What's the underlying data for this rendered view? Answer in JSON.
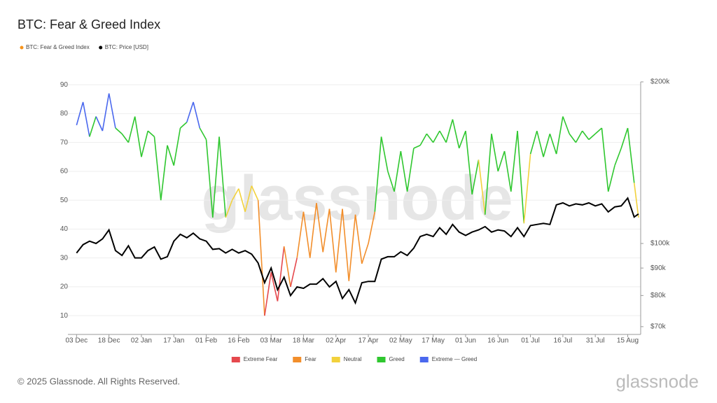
{
  "chart_data": {
    "type": "line",
    "title": "BTC: Fear & Greed Index",
    "watermark": "glassnode",
    "footer": "© 2025 Glassnode. All Rights Reserved.",
    "logo": "glassnode",
    "x": [
      0,
      3,
      6,
      9,
      12,
      15,
      18,
      21,
      24,
      27,
      30,
      33,
      36,
      39,
      42,
      45,
      48,
      51,
      54,
      57,
      60,
      63,
      66,
      69,
      72,
      75,
      78,
      81,
      84,
      87,
      90,
      93,
      96,
      99,
      102,
      105,
      108,
      111,
      114,
      117,
      120,
      123,
      126,
      129,
      132,
      135,
      138,
      141,
      144,
      147,
      150,
      153,
      156,
      159,
      162,
      165,
      168,
      171,
      174,
      177,
      180,
      183,
      186,
      189,
      192,
      195,
      198,
      201,
      204,
      207,
      210,
      213,
      216,
      219,
      222,
      225,
      228,
      231,
      234,
      237,
      240,
      243,
      246,
      249,
      252,
      255,
      258,
      260
    ],
    "xlim": [
      -4,
      261
    ],
    "xticks": [
      {
        "value": 0,
        "label": "03 Dec"
      },
      {
        "value": 15,
        "label": "18 Dec"
      },
      {
        "value": 30,
        "label": "02 Jan"
      },
      {
        "value": 45,
        "label": "17 Jan"
      },
      {
        "value": 60,
        "label": "01 Feb"
      },
      {
        "value": 75,
        "label": "16 Feb"
      },
      {
        "value": 90,
        "label": "03 Mar"
      },
      {
        "value": 105,
        "label": "18 Mar"
      },
      {
        "value": 120,
        "label": "02 Apr"
      },
      {
        "value": 135,
        "label": "17 Apr"
      },
      {
        "value": 150,
        "label": "02 May"
      },
      {
        "value": 165,
        "label": "17 May"
      },
      {
        "value": 180,
        "label": "01 Jun"
      },
      {
        "value": 195,
        "label": "16 Jun"
      },
      {
        "value": 210,
        "label": "01 Jul"
      },
      {
        "value": 225,
        "label": "16 Jul"
      },
      {
        "value": 240,
        "label": "31 Jul"
      },
      {
        "value": 255,
        "label": "15 Aug"
      }
    ],
    "ylim": [
      3.5,
      91
    ],
    "yticks": [
      10,
      20,
      30,
      40,
      50,
      60,
      70,
      80,
      90
    ],
    "y2lim": [
      67700,
      200000
    ],
    "y2log": true,
    "y2ticks": [
      {
        "value": 70000,
        "label": "$70k"
      },
      {
        "value": 80000,
        "label": "$80k"
      },
      {
        "value": 90000,
        "label": "$90k"
      },
      {
        "value": 100000,
        "label": "$100k"
      },
      {
        "value": 200000,
        "label": "$200k"
      }
    ],
    "grid": true,
    "series": [
      {
        "name": "BTC: Fear & Greed Index",
        "color": "#f7931a",
        "values": [
          76,
          84,
          72,
          79,
          74,
          87,
          75,
          73,
          70,
          79,
          65,
          74,
          72,
          50,
          69,
          62,
          75,
          77,
          84,
          75,
          71,
          44,
          72,
          44,
          50,
          54,
          46,
          55,
          50,
          10,
          25,
          15,
          34,
          20,
          30,
          46,
          30,
          49,
          32,
          47,
          25,
          47,
          22,
          45,
          28,
          35,
          46,
          72,
          60,
          53,
          67,
          53,
          68,
          69,
          73,
          70,
          74,
          70,
          78,
          68,
          74,
          52,
          64,
          45,
          73,
          60,
          67,
          53,
          74,
          42,
          66,
          74,
          65,
          73,
          66,
          79,
          73,
          70,
          74,
          71,
          73,
          75,
          53,
          62,
          68,
          75,
          56,
          44
        ]
      },
      {
        "name": "BTC: Price [USD]",
        "color": "#000000",
        "axis": "y2",
        "values": [
          96000,
          99500,
          101000,
          100000,
          102000,
          106000,
          97000,
          95000,
          99000,
          94000,
          94000,
          97000,
          98500,
          93500,
          94500,
          101000,
          104000,
          102500,
          104500,
          102000,
          101000,
          97500,
          97800,
          96000,
          97500,
          96000,
          97000,
          95500,
          92000,
          84500,
          90000,
          82000,
          86500,
          80000,
          83000,
          82500,
          84000,
          84000,
          86000,
          83000,
          85000,
          79000,
          82000,
          77500,
          84500,
          85000,
          85000,
          93500,
          94500,
          94500,
          96500,
          95000,
          98000,
          103000,
          104000,
          103000,
          107000,
          104000,
          108500,
          105000,
          103500,
          105000,
          106000,
          107500,
          105000,
          106000,
          105500,
          103000,
          107000,
          103000,
          108000,
          108500,
          109000,
          108500,
          118000,
          119000,
          117500,
          118500,
          118000,
          119000,
          117500,
          118500,
          114500,
          117000,
          117500,
          121500,
          112000,
          113500
        ]
      }
    ],
    "zones": [
      {
        "name": "Extreme Fear",
        "color": "#e5484d",
        "max": 25
      },
      {
        "name": "Fear",
        "color": "#f28e2b",
        "max": 46
      },
      {
        "name": "Neutral",
        "color": "#f2d13c",
        "max": 55
      },
      {
        "name": "Greed",
        "color": "#2fc72f",
        "max": 76
      },
      {
        "name": "Extreme — Greed",
        "color": "#4a68ee",
        "max": 100
      }
    ]
  }
}
